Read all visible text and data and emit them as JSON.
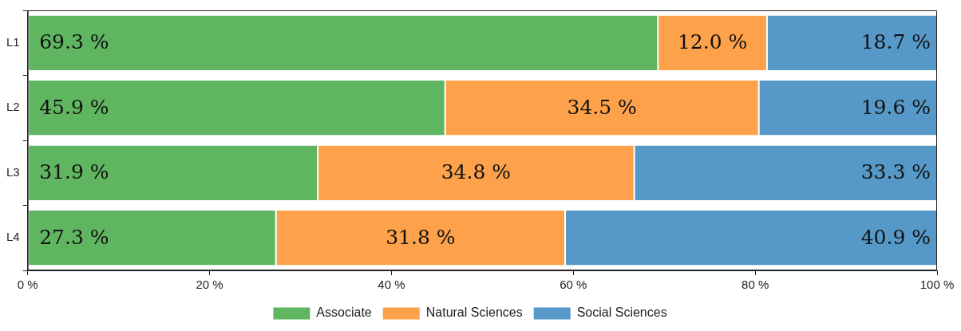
{
  "chart_data": {
    "type": "bar",
    "orientation": "horizontal",
    "stacked": true,
    "categories": [
      "L1",
      "L2",
      "L3",
      "L4"
    ],
    "series": [
      {
        "name": "Associate",
        "color": "#60b660",
        "values": [
          69.3,
          45.9,
          31.9,
          27.3
        ],
        "value_labels": [
          "69.3 %",
          "45.9 %",
          "31.9 %",
          "27.3 %"
        ]
      },
      {
        "name": "Natural Sciences",
        "color": "#fda24b",
        "values": [
          12.0,
          34.5,
          34.8,
          31.8
        ],
        "value_labels": [
          "12.0 %",
          "34.5 %",
          "34.8 %",
          "31.8 %"
        ]
      },
      {
        "name": "Social Sciences",
        "color": "#5699c8",
        "values": [
          18.7,
          19.6,
          33.3,
          40.9
        ],
        "value_labels": [
          "18.7 %",
          "19.6 %",
          "33.3 %",
          "40.9 %"
        ]
      }
    ],
    "xlim": [
      0,
      100
    ],
    "xticks": [
      {
        "value": 0,
        "label": "0 %"
      },
      {
        "value": 20,
        "label": "20 %"
      },
      {
        "value": 40,
        "label": "40 %"
      },
      {
        "value": 60,
        "label": "60 %"
      },
      {
        "value": 80,
        "label": "80 %"
      },
      {
        "value": 100,
        "label": "100 %"
      }
    ],
    "legend": "bottom",
    "grid": false
  }
}
